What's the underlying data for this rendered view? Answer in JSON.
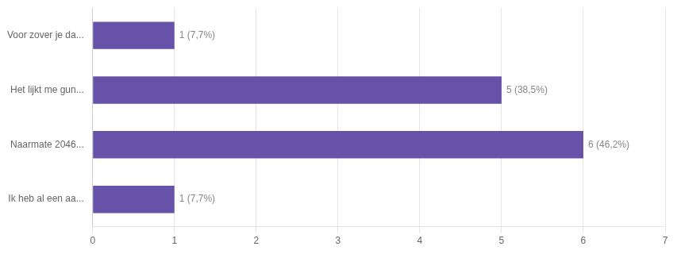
{
  "chart_data": {
    "type": "bar",
    "orientation": "horizontal",
    "categories": [
      "Voor zover je da...",
      "Het lijkt me gun...",
      "Naarmate 2046...",
      "Ik heb al een aa..."
    ],
    "values": [
      1,
      5,
      6,
      1
    ],
    "value_labels": [
      "1 (7,7%)",
      "5 (38,5%)",
      "6 (46,2%)",
      "1 (7,7%)"
    ],
    "data_labels": true,
    "color": "#6652a8",
    "xlim": [
      0,
      7
    ],
    "xticks": [
      0,
      1,
      2,
      3,
      4,
      5,
      6,
      7
    ],
    "grid": true
  }
}
